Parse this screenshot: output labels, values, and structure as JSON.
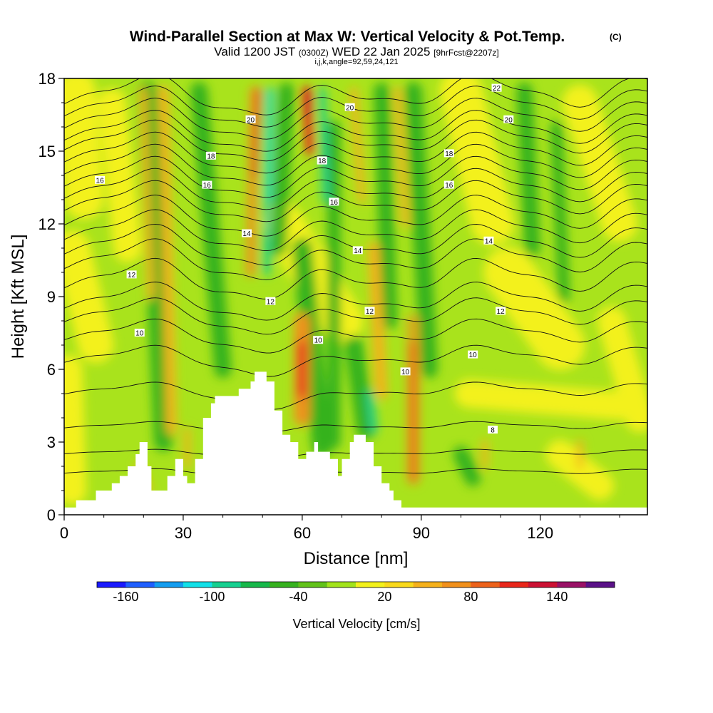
{
  "header": {
    "title": "Wind-Parallel Section at Max W: Vertical Velocity & Pot.Temp.",
    "title_mark": "(C)",
    "valid_main": "Valid 1200 JST",
    "valid_utc": "(0300Z)",
    "valid_date": "WED 22 Jan 2025",
    "valid_fcst": "[9hrFcst@2207z]",
    "section_params": "i,j,k,angle=92,59,24,121"
  },
  "chart_data": {
    "type": "heatmap",
    "xlabel": "Distance [nm]",
    "ylabel": "Height [Kft MSL]",
    "xlim": [
      0,
      147
    ],
    "ylim": [
      0,
      18
    ],
    "x_ticks": [
      0,
      30,
      60,
      90,
      120
    ],
    "x_tick_labels": [
      "0",
      "30",
      "60",
      "90",
      "120"
    ],
    "y_ticks": [
      0,
      3,
      6,
      9,
      12,
      15,
      18
    ],
    "y_tick_labels": [
      "0",
      "3",
      "6",
      "9",
      "12",
      "15",
      "18"
    ],
    "field": "Vertical Velocity",
    "colorbar": {
      "label": "Vertical Velocity [cm/s]",
      "range": [
        -180,
        180
      ],
      "tick_values": [
        -160,
        -100,
        -40,
        20,
        80,
        140
      ],
      "tick_labels": [
        "-160",
        "-100",
        "-40",
        "20",
        "80",
        "140"
      ],
      "colors": [
        "#1a1aff",
        "#1f5fff",
        "#139df0",
        "#11e0e8",
        "#15d090",
        "#16b84a",
        "#36b21e",
        "#62c219",
        "#a2e31a",
        "#f3f11a",
        "#f9d91a",
        "#f5b11a",
        "#f1901a",
        "#ed621a",
        "#e9261a",
        "#cc1133",
        "#9a1166",
        "#5a1188"
      ]
    },
    "terrain_kft": [
      [
        0,
        0.3
      ],
      [
        3,
        0.3
      ],
      [
        3,
        0.6
      ],
      [
        8,
        0.6
      ],
      [
        8,
        1.0
      ],
      [
        12,
        1.0
      ],
      [
        12,
        1.3
      ],
      [
        14,
        1.3
      ],
      [
        14,
        1.6
      ],
      [
        16,
        1.6
      ],
      [
        16,
        2.0
      ],
      [
        18,
        2.0
      ],
      [
        18,
        2.5
      ],
      [
        19,
        2.5
      ],
      [
        19,
        3.0
      ],
      [
        21,
        3.0
      ],
      [
        21,
        2.0
      ],
      [
        22,
        2.0
      ],
      [
        22,
        1.0
      ],
      [
        26,
        1.0
      ],
      [
        26,
        1.6
      ],
      [
        28,
        1.6
      ],
      [
        28,
        2.3
      ],
      [
        30,
        2.3
      ],
      [
        30,
        1.6
      ],
      [
        31,
        1.6
      ],
      [
        31,
        1.3
      ],
      [
        33,
        1.3
      ],
      [
        33,
        2.3
      ],
      [
        35,
        2.3
      ],
      [
        35,
        4.0
      ],
      [
        37,
        4.0
      ],
      [
        37,
        4.6
      ],
      [
        38,
        4.6
      ],
      [
        38,
        4.9
      ],
      [
        44,
        4.9
      ],
      [
        44,
        5.2
      ],
      [
        47,
        5.2
      ],
      [
        47,
        5.5
      ],
      [
        48,
        5.5
      ],
      [
        48,
        5.9
      ],
      [
        51,
        5.9
      ],
      [
        51,
        5.5
      ],
      [
        53,
        5.5
      ],
      [
        53,
        4.3
      ],
      [
        55,
        4.3
      ],
      [
        55,
        3.3
      ],
      [
        57,
        3.3
      ],
      [
        57,
        3.0
      ],
      [
        59,
        3.0
      ],
      [
        59,
        2.3
      ],
      [
        61,
        2.3
      ],
      [
        61,
        2.6
      ],
      [
        63,
        2.6
      ],
      [
        63,
        3.0
      ],
      [
        64,
        3.0
      ],
      [
        64,
        2.6
      ],
      [
        67,
        2.6
      ],
      [
        67,
        2.3
      ],
      [
        69,
        2.3
      ],
      [
        69,
        1.6
      ],
      [
        70,
        1.6
      ],
      [
        70,
        2.3
      ],
      [
        72,
        2.3
      ],
      [
        72,
        3.0
      ],
      [
        73,
        3.0
      ],
      [
        73,
        3.3
      ],
      [
        76,
        3.3
      ],
      [
        76,
        3.0
      ],
      [
        78,
        3.0
      ],
      [
        78,
        2.0
      ],
      [
        80,
        2.0
      ],
      [
        80,
        1.3
      ],
      [
        82,
        1.3
      ],
      [
        82,
        1.0
      ],
      [
        83,
        1.0
      ],
      [
        83,
        0.6
      ],
      [
        85,
        0.6
      ],
      [
        85,
        0.3
      ],
      [
        147,
        0.3
      ]
    ],
    "theta_contours_K": [
      {
        "label": "8",
        "label_pos": [
          108,
          3.5
        ]
      },
      {
        "label": "10",
        "label_pos": [
          19,
          7.5
        ]
      },
      {
        "label": "10",
        "label_pos": [
          64,
          7.2
        ]
      },
      {
        "label": "10",
        "label_pos": [
          86,
          5.9
        ]
      },
      {
        "label": "10",
        "label_pos": [
          103,
          6.6
        ]
      },
      {
        "label": "12",
        "label_pos": [
          17,
          9.9
        ]
      },
      {
        "label": "12",
        "label_pos": [
          52,
          8.8
        ]
      },
      {
        "label": "12",
        "label_pos": [
          77,
          8.4
        ]
      },
      {
        "label": "12",
        "label_pos": [
          110,
          8.4
        ]
      },
      {
        "label": "14",
        "label_pos": [
          46,
          11.6
        ]
      },
      {
        "label": "14",
        "label_pos": [
          74,
          10.9
        ]
      },
      {
        "label": "14",
        "label_pos": [
          107,
          11.3
        ]
      },
      {
        "label": "16",
        "label_pos": [
          9,
          13.8
        ]
      },
      {
        "label": "16",
        "label_pos": [
          36,
          13.6
        ]
      },
      {
        "label": "16",
        "label_pos": [
          68,
          12.9
        ]
      },
      {
        "label": "16",
        "label_pos": [
          97,
          13.6
        ]
      },
      {
        "label": "18",
        "label_pos": [
          37,
          14.8
        ]
      },
      {
        "label": "18",
        "label_pos": [
          65,
          14.6
        ]
      },
      {
        "label": "18",
        "label_pos": [
          97,
          14.9
        ]
      },
      {
        "label": "20",
        "label_pos": [
          47,
          16.3
        ]
      },
      {
        "label": "20",
        "label_pos": [
          72,
          16.8
        ]
      },
      {
        "label": "20",
        "label_pos": [
          112,
          16.3
        ]
      },
      {
        "label": "22",
        "label_pos": [
          109,
          17.6
        ]
      }
    ]
  }
}
